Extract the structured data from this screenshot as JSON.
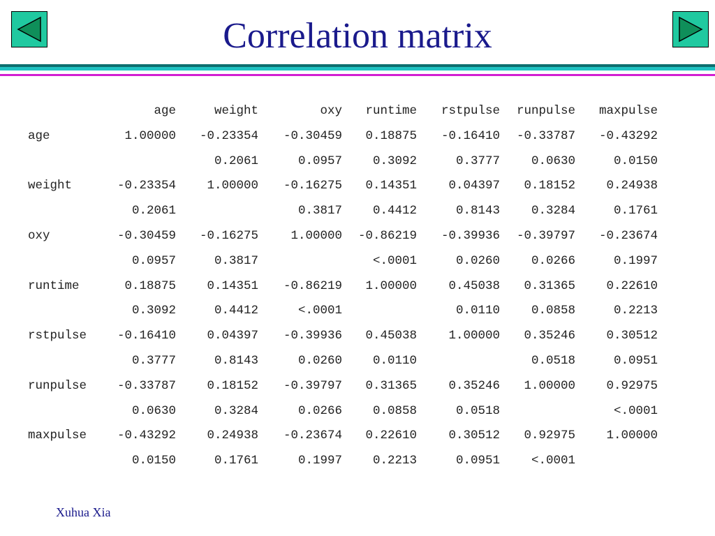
{
  "slide": {
    "title": "Correlation matrix",
    "footer": "Xuhua Xia",
    "colors": {
      "title": "#1a1a8c",
      "nav_button": "#20c9a0",
      "rule_teal": "#1fc2c2",
      "rule_magenta": "#d21fd2"
    },
    "nav": {
      "prev_icon": "triangle-left-icon",
      "next_icon": "triangle-right-icon"
    }
  },
  "matrix": {
    "columns": [
      "age",
      "weight",
      "oxy",
      "runtime",
      "rstpulse",
      "runpulse",
      "maxpulse"
    ],
    "rows": [
      {
        "label": "age",
        "r": [
          "1.00000",
          "-0.23354",
          "-0.30459",
          "0.18875",
          "-0.16410",
          "-0.33787",
          "-0.43292"
        ],
        "p": [
          "",
          "0.2061",
          "0.0957",
          "0.3092",
          "0.3777",
          "0.0630",
          "0.0150"
        ]
      },
      {
        "label": "weight",
        "r": [
          "-0.23354",
          "1.00000",
          "-0.16275",
          "0.14351",
          "0.04397",
          "0.18152",
          "0.24938"
        ],
        "p": [
          "0.2061",
          "",
          "0.3817",
          "0.4412",
          "0.8143",
          "0.3284",
          "0.1761"
        ]
      },
      {
        "label": "oxy",
        "r": [
          "-0.30459",
          "-0.16275",
          "1.00000",
          "-0.86219",
          "-0.39936",
          "-0.39797",
          "-0.23674"
        ],
        "p": [
          "0.0957",
          "0.3817",
          "",
          "<.0001",
          "0.0260",
          "0.0266",
          "0.1997"
        ]
      },
      {
        "label": "runtime",
        "r": [
          "0.18875",
          "0.14351",
          "-0.86219",
          "1.00000",
          "0.45038",
          "0.31365",
          "0.22610"
        ],
        "p": [
          "0.3092",
          "0.4412",
          "<.0001",
          "",
          "0.0110",
          "0.0858",
          "0.2213"
        ]
      },
      {
        "label": "rstpulse",
        "r": [
          "-0.16410",
          "0.04397",
          "-0.39936",
          "0.45038",
          "1.00000",
          "0.35246",
          "0.30512"
        ],
        "p": [
          "0.3777",
          "0.8143",
          "0.0260",
          "0.0110",
          "",
          "0.0518",
          "0.0951"
        ]
      },
      {
        "label": "runpulse",
        "r": [
          "-0.33787",
          "0.18152",
          "-0.39797",
          "0.31365",
          "0.35246",
          "1.00000",
          "0.92975"
        ],
        "p": [
          "0.0630",
          "0.3284",
          "0.0266",
          "0.0858",
          "0.0518",
          "",
          "<.0001"
        ]
      },
      {
        "label": "maxpulse",
        "r": [
          "-0.43292",
          "0.24938",
          "-0.23674",
          "0.22610",
          "0.30512",
          "0.92975",
          "1.00000"
        ],
        "p": [
          "0.0150",
          "0.1761",
          "0.1997",
          "0.2213",
          "0.0951",
          "<.0001",
          ""
        ]
      }
    ]
  }
}
